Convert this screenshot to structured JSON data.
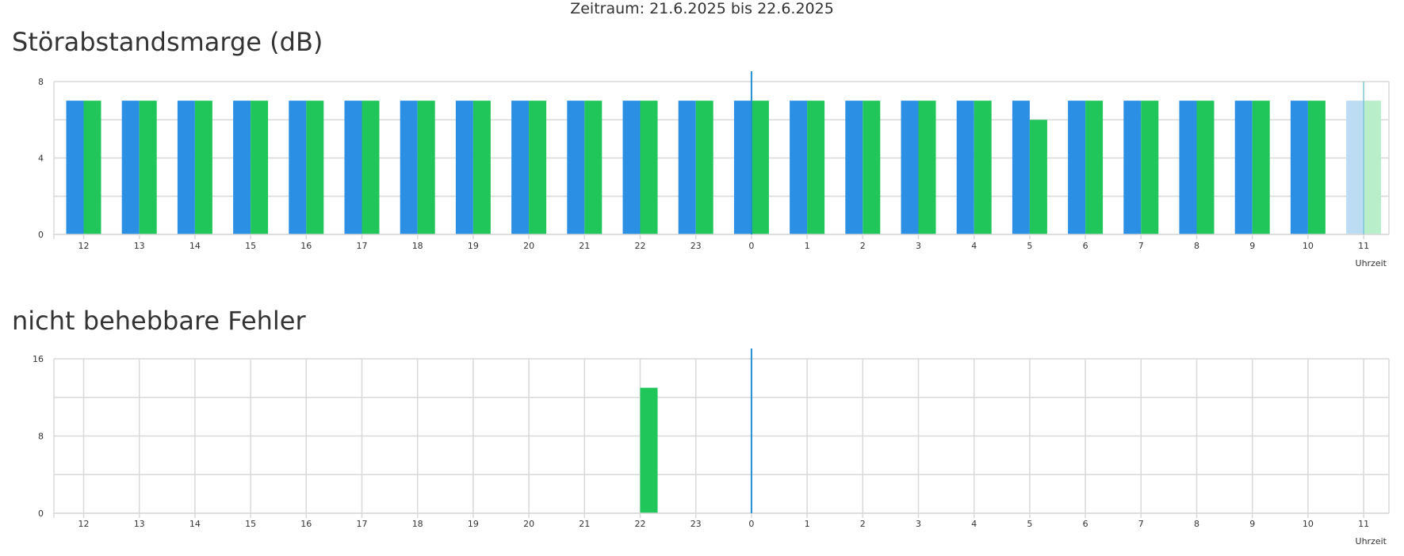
{
  "header": {
    "period": "Zeitraum: 21.6.2025 bis 22.6.2025"
  },
  "colors": {
    "blue": "#2b8fe3",
    "green": "#21c65a",
    "blue_light": "#bcdcf3",
    "green_light": "#b9eecb",
    "grid": "#d9d9d9",
    "marker": "#1f8fd1"
  },
  "chart_data": [
    {
      "type": "bar",
      "title": "Störabstandsmarge (dB)",
      "xlabel": "Uhrzeit",
      "categories": [
        "12",
        "13",
        "14",
        "15",
        "16",
        "17",
        "18",
        "19",
        "20",
        "21",
        "22",
        "23",
        "0",
        "1",
        "2",
        "3",
        "4",
        "5",
        "6",
        "7",
        "8",
        "9",
        "10",
        "11"
      ],
      "yticks": [
        "0",
        "4",
        "8"
      ],
      "ylim": [
        0,
        8
      ],
      "series": [
        {
          "color": "#2b8fe3",
          "values": [
            7,
            7,
            7,
            7,
            7,
            7,
            7,
            7,
            7,
            7,
            7,
            7,
            7,
            7,
            7,
            7,
            7,
            7,
            7,
            7,
            7,
            7,
            7,
            7
          ]
        },
        {
          "color": "#21c65a",
          "values": [
            7,
            7,
            7,
            7,
            7,
            7,
            7,
            7,
            7,
            7,
            7,
            7,
            7,
            7,
            7,
            7,
            7,
            6,
            7,
            7,
            7,
            7,
            7,
            7
          ]
        }
      ],
      "faded_category": "11",
      "marker_category": "0",
      "grid": true
    },
    {
      "type": "bar",
      "title": "nicht behebbare Fehler",
      "xlabel": "Uhrzeit",
      "categories": [
        "12",
        "13",
        "14",
        "15",
        "16",
        "17",
        "18",
        "19",
        "20",
        "21",
        "22",
        "23",
        "0",
        "1",
        "2",
        "3",
        "4",
        "5",
        "6",
        "7",
        "8",
        "9",
        "10",
        "11"
      ],
      "yticks": [
        "0",
        "8",
        "16"
      ],
      "ylim": [
        0,
        16
      ],
      "series": [
        {
          "color": "#2b8fe3",
          "values": [
            0,
            0,
            0,
            0,
            0,
            0,
            0,
            0,
            0,
            0,
            0,
            0,
            0,
            0,
            0,
            0,
            0,
            0,
            0,
            0,
            0,
            0,
            0,
            0
          ]
        },
        {
          "color": "#21c65a",
          "values": [
            0,
            0,
            0,
            0,
            0,
            0,
            0,
            0,
            0,
            0,
            13,
            0,
            0,
            0,
            0,
            0,
            0,
            0,
            0,
            0,
            0,
            0,
            0,
            0
          ]
        }
      ],
      "marker_category": "0",
      "grid": true
    }
  ]
}
